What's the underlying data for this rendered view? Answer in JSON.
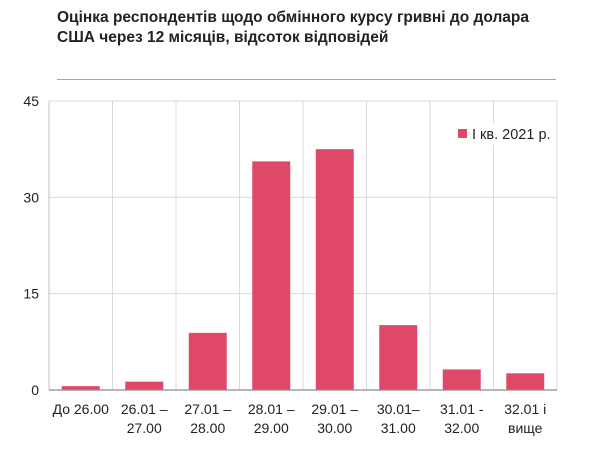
{
  "title": "Оцінка респондентів щодо обмінного курсу гривні до долара США через 12 місяців, відсоток відповідей",
  "chart_data": {
    "type": "bar",
    "categories": [
      [
        "До 26.00"
      ],
      [
        "26.01 –",
        "27.00"
      ],
      [
        "27.01 –",
        "28.00"
      ],
      [
        "28.01 –",
        "29.00"
      ],
      [
        "29.01 –",
        "30.00"
      ],
      [
        "30.01–",
        "31.00"
      ],
      [
        "31.01 -",
        "32.00"
      ],
      [
        "32.01 і",
        "вище"
      ]
    ],
    "series": [
      {
        "name": "I кв. 2021 р.",
        "values": [
          0.6,
          1.3,
          8.9,
          35.6,
          37.5,
          10.1,
          3.2,
          2.6
        ],
        "color": "#e0486a"
      }
    ],
    "ylim": [
      0,
      45
    ],
    "yticks": [
      0,
      15,
      30,
      45
    ],
    "grid": true,
    "legend": "top-right"
  }
}
